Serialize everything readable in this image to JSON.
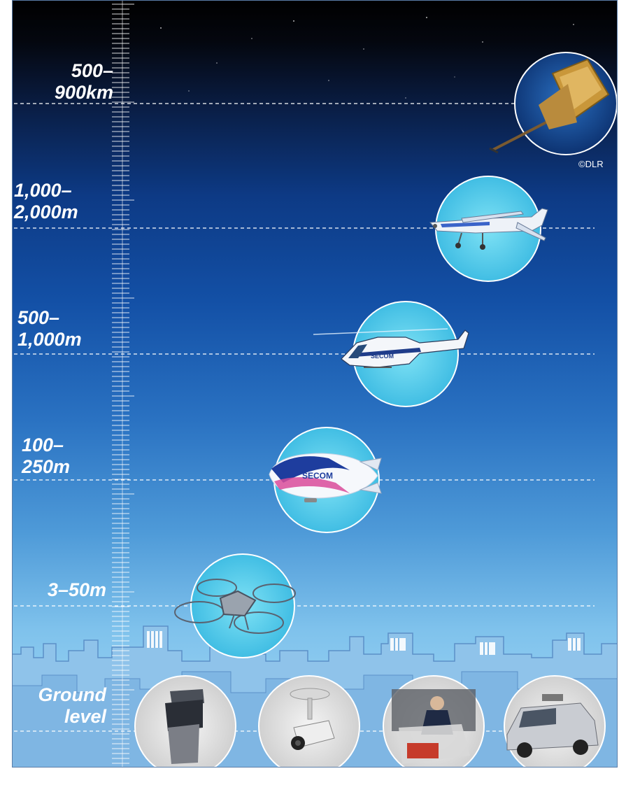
{
  "altitude_levels": [
    {
      "label": "500–\n900km",
      "vehicle": "satellite"
    },
    {
      "label": "1,000–\n2,000m",
      "vehicle": "airplane"
    },
    {
      "label": "500–\n1,000m",
      "vehicle": "helicopter"
    },
    {
      "label": "100–\n250m",
      "vehicle": "airship"
    },
    {
      "label": "3–50m",
      "vehicle": "drone"
    },
    {
      "label": "Ground\nlevel",
      "vehicle": "ground"
    }
  ],
  "ground_items": [
    "sensor-device-icon",
    "ceiling-camera-icon",
    "security-guard-icon",
    "surveillance-van-icon"
  ],
  "airship_logo": "SECOM",
  "helicopter_logo": "SECOM",
  "credit": "©DLR",
  "colors": {
    "sky_top": "#000000",
    "sky_mid": "#1350a6",
    "sky_bottom": "#a9dcf6",
    "circle_fill": "#5fd0ec",
    "skyline": "#8fbde6"
  }
}
